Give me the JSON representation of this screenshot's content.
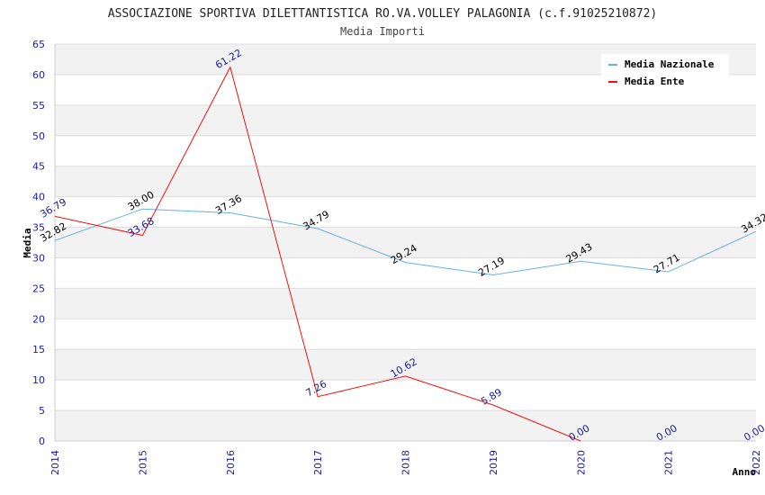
{
  "chart_data": {
    "type": "line",
    "title": "ASSOCIAZIONE SPORTIVA DILETTANTISTICA RO.VA.VOLLEY PALAGONIA (c.f.91025210872)",
    "subtitle": "Media Importi",
    "xlabel": "Anno",
    "ylabel": "Media",
    "x": [
      "2014",
      "2015",
      "2016",
      "2017",
      "2018",
      "2019",
      "2020",
      "2021",
      "2022"
    ],
    "ylim": [
      0,
      65
    ],
    "yticks": [
      0,
      5,
      10,
      15,
      20,
      25,
      30,
      35,
      40,
      45,
      50,
      55,
      60,
      65
    ],
    "grid": true,
    "legend_position": "top-right",
    "series": [
      {
        "name": "Media Nazionale",
        "color": "#6aaee8",
        "label_color": "#000000",
        "values": [
          32.82,
          38.0,
          37.36,
          34.79,
          29.24,
          27.19,
          29.43,
          27.71,
          34.32
        ],
        "labels": [
          "32.82",
          "38.00",
          "37.36",
          "34.79",
          "29.24",
          "27.19",
          "29.43",
          "27.71",
          "34.32"
        ],
        "drawn_points": 9
      },
      {
        "name": "Media Ente",
        "color": "#ee1111",
        "label_color": "#1a1a8c",
        "values": [
          36.79,
          33.68,
          61.22,
          7.26,
          10.62,
          5.89,
          0.0,
          0.0,
          0.0
        ],
        "labels": [
          "36.79",
          "33.68",
          "61.22",
          "7.26",
          "10.62",
          "5.89",
          "0.00",
          "0.00",
          "0.00"
        ],
        "drawn_points": 7
      }
    ]
  }
}
